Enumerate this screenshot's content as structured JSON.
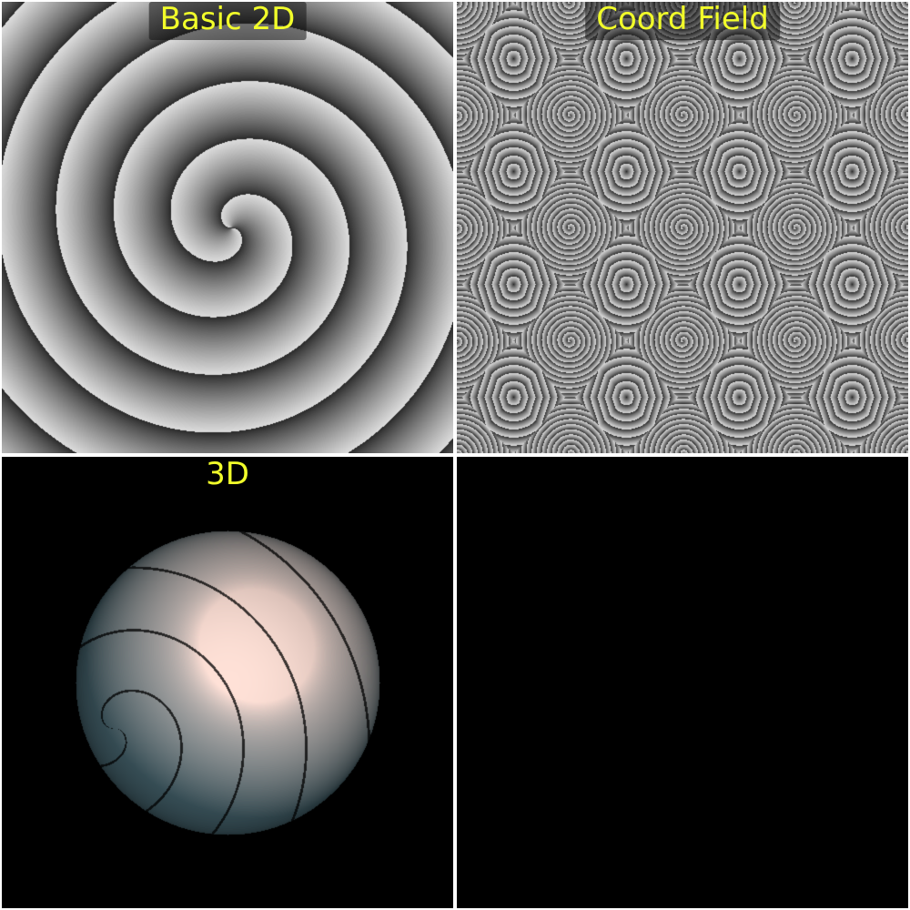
{
  "panels": [
    {
      "label": "Basic 2D",
      "kind": "spiral-2d"
    },
    {
      "label": "Coord Field",
      "kind": "coord-field"
    },
    {
      "label": "3D",
      "kind": "sphere-3d"
    },
    {
      "label": "",
      "kind": "empty"
    }
  ],
  "colors": {
    "label": "#f2ff2a",
    "background": "#000000",
    "divider": "#ffffff"
  }
}
